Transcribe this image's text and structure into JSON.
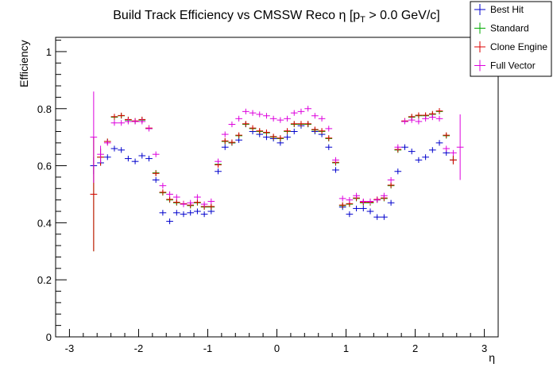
{
  "chart_data": {
    "type": "scatter",
    "title_main": "Build Track Efficiency vs CMSSW Reco η [p",
    "title_sub": "T",
    "title_end": " > 0.0 GeV/c]",
    "xlabel": "η",
    "ylabel": "Efficiency",
    "xlim": [
      -3.2,
      3.2
    ],
    "ylim": [
      0,
      1.05
    ],
    "x_ticks": [
      -3,
      -2,
      -1,
      0,
      1,
      2,
      3
    ],
    "x_tick_labels": [
      "-3",
      "-2",
      "-1",
      "0",
      "1",
      "2",
      "3"
    ],
    "y_ticks": [
      0,
      0.2,
      0.4,
      0.6,
      0.8,
      1
    ],
    "y_tick_labels": [
      "0",
      "0.2",
      "0.4",
      "0.6",
      "0.8",
      "1"
    ],
    "legend_position": "top-right",
    "bin_half_width": 0.05,
    "x": [
      -2.65,
      -2.55,
      -2.45,
      -2.35,
      -2.25,
      -2.15,
      -2.05,
      -1.95,
      -1.85,
      -1.75,
      -1.65,
      -1.55,
      -1.45,
      -1.35,
      -1.25,
      -1.15,
      -1.05,
      -0.95,
      -0.85,
      -0.75,
      -0.65,
      -0.55,
      -0.45,
      -0.35,
      -0.25,
      -0.15,
      -0.05,
      0.05,
      0.15,
      0.25,
      0.35,
      0.45,
      0.55,
      0.65,
      0.75,
      0.85,
      0.95,
      1.05,
      1.15,
      1.25,
      1.35,
      1.45,
      1.55,
      1.65,
      1.75,
      1.85,
      1.95,
      2.05,
      2.15,
      2.25,
      2.35,
      2.45,
      2.55,
      2.65
    ],
    "series": [
      {
        "name": "Best Hit",
        "color": "#0000cc",
        "values": [
          0.6,
          0.61,
          0.63,
          0.66,
          0.655,
          0.625,
          0.615,
          0.635,
          0.625,
          0.55,
          0.435,
          0.405,
          0.435,
          0.43,
          0.435,
          0.44,
          0.43,
          0.44,
          0.58,
          0.665,
          0.68,
          0.69,
          0.745,
          0.72,
          0.71,
          0.7,
          0.695,
          0.68,
          0.7,
          0.72,
          0.74,
          0.745,
          0.72,
          0.71,
          0.665,
          0.585,
          0.455,
          0.43,
          0.45,
          0.45,
          0.44,
          0.42,
          0.42,
          0.47,
          0.58,
          0.665,
          0.65,
          0.62,
          0.63,
          0.655,
          0.68,
          0.645,
          0.62,
          null
        ],
        "errors": [
          0.03,
          0.01,
          0.01,
          0.01,
          0.01,
          0.01,
          0.01,
          0.01,
          0.01,
          0.01,
          0.01,
          0.01,
          0.01,
          0.01,
          0.01,
          0.01,
          0.01,
          0.01,
          0.01,
          0.01,
          0.01,
          0.01,
          0.01,
          0.01,
          0.01,
          0.01,
          0.01,
          0.01,
          0.01,
          0.01,
          0.01,
          0.01,
          0.01,
          0.01,
          0.01,
          0.01,
          0.01,
          0.01,
          0.01,
          0.01,
          0.01,
          0.01,
          0.01,
          0.01,
          0.01,
          0.01,
          0.01,
          0.01,
          0.01,
          0.01,
          0.01,
          0.01,
          0.01,
          0
        ]
      },
      {
        "name": "Standard",
        "color": "#00aa00",
        "values": [
          0.5,
          0.63,
          0.685,
          0.77,
          0.775,
          0.76,
          0.755,
          0.76,
          0.73,
          0.575,
          0.505,
          0.48,
          0.47,
          0.465,
          0.46,
          0.47,
          0.455,
          0.455,
          0.605,
          0.685,
          0.68,
          0.705,
          0.745,
          0.73,
          0.72,
          0.715,
          0.7,
          0.695,
          0.72,
          0.745,
          0.745,
          0.745,
          0.725,
          0.72,
          0.695,
          0.61,
          0.46,
          0.465,
          0.485,
          0.47,
          0.47,
          0.48,
          0.485,
          0.53,
          0.655,
          0.755,
          0.77,
          0.775,
          0.775,
          0.78,
          0.79,
          0.705,
          0.62,
          null
        ],
        "errors": [
          0.2,
          0.03,
          0.01,
          0.01,
          0.01,
          0.01,
          0.01,
          0.01,
          0.01,
          0.01,
          0.01,
          0.01,
          0.01,
          0.01,
          0.01,
          0.01,
          0.01,
          0.01,
          0.01,
          0.01,
          0.01,
          0.01,
          0.01,
          0.01,
          0.01,
          0.01,
          0.01,
          0.01,
          0.01,
          0.01,
          0.01,
          0.01,
          0.01,
          0.01,
          0.01,
          0.01,
          0.01,
          0.01,
          0.01,
          0.01,
          0.01,
          0.01,
          0.01,
          0.01,
          0.01,
          0.01,
          0.01,
          0.01,
          0.01,
          0.01,
          0.01,
          0.01,
          0.015,
          0
        ]
      },
      {
        "name": "Clone Engine",
        "color": "#dd0000",
        "values": [
          0.5,
          0.63,
          0.685,
          0.772,
          0.776,
          0.762,
          0.757,
          0.762,
          0.732,
          0.573,
          0.507,
          0.482,
          0.472,
          0.467,
          0.462,
          0.472,
          0.457,
          0.457,
          0.603,
          0.687,
          0.682,
          0.707,
          0.747,
          0.732,
          0.722,
          0.717,
          0.702,
          0.697,
          0.722,
          0.747,
          0.747,
          0.747,
          0.727,
          0.722,
          0.697,
          0.612,
          0.462,
          0.467,
          0.487,
          0.472,
          0.472,
          0.482,
          0.487,
          0.532,
          0.657,
          0.757,
          0.772,
          0.777,
          0.777,
          0.782,
          0.792,
          0.707,
          0.62,
          null
        ],
        "errors": [
          0.2,
          0.03,
          0.01,
          0.01,
          0.01,
          0.01,
          0.01,
          0.01,
          0.01,
          0.01,
          0.01,
          0.01,
          0.01,
          0.01,
          0.01,
          0.01,
          0.01,
          0.01,
          0.01,
          0.01,
          0.01,
          0.01,
          0.01,
          0.01,
          0.01,
          0.01,
          0.01,
          0.01,
          0.01,
          0.01,
          0.01,
          0.01,
          0.01,
          0.01,
          0.01,
          0.01,
          0.01,
          0.01,
          0.01,
          0.01,
          0.01,
          0.01,
          0.01,
          0.01,
          0.01,
          0.01,
          0.01,
          0.01,
          0.01,
          0.01,
          0.01,
          0.01,
          0.015,
          0
        ]
      },
      {
        "name": "Full Vector",
        "color": "#dd00dd",
        "values": [
          0.7,
          0.64,
          0.68,
          0.75,
          0.75,
          0.755,
          0.755,
          0.755,
          0.73,
          0.64,
          0.53,
          0.5,
          0.49,
          0.465,
          0.47,
          0.49,
          0.465,
          0.475,
          0.615,
          0.71,
          0.745,
          0.765,
          0.79,
          0.785,
          0.78,
          0.775,
          0.765,
          0.76,
          0.765,
          0.785,
          0.79,
          0.8,
          0.775,
          0.765,
          0.73,
          0.62,
          0.485,
          0.48,
          0.495,
          0.475,
          0.475,
          0.48,
          0.495,
          0.55,
          0.665,
          0.755,
          0.76,
          0.755,
          0.765,
          0.77,
          0.765,
          0.66,
          0.645,
          0.665
        ],
        "errors": [
          0.16,
          0.03,
          0.01,
          0.01,
          0.01,
          0.01,
          0.01,
          0.01,
          0.01,
          0.01,
          0.01,
          0.01,
          0.01,
          0.01,
          0.01,
          0.01,
          0.01,
          0.01,
          0.01,
          0.01,
          0.01,
          0.01,
          0.01,
          0.01,
          0.01,
          0.01,
          0.01,
          0.01,
          0.01,
          0.01,
          0.01,
          0.01,
          0.01,
          0.01,
          0.01,
          0.01,
          0.01,
          0.01,
          0.01,
          0.01,
          0.01,
          0.01,
          0.01,
          0.01,
          0.01,
          0.01,
          0.01,
          0.01,
          0.01,
          0.01,
          0.01,
          0.01,
          0.01,
          0.115
        ]
      }
    ]
  }
}
